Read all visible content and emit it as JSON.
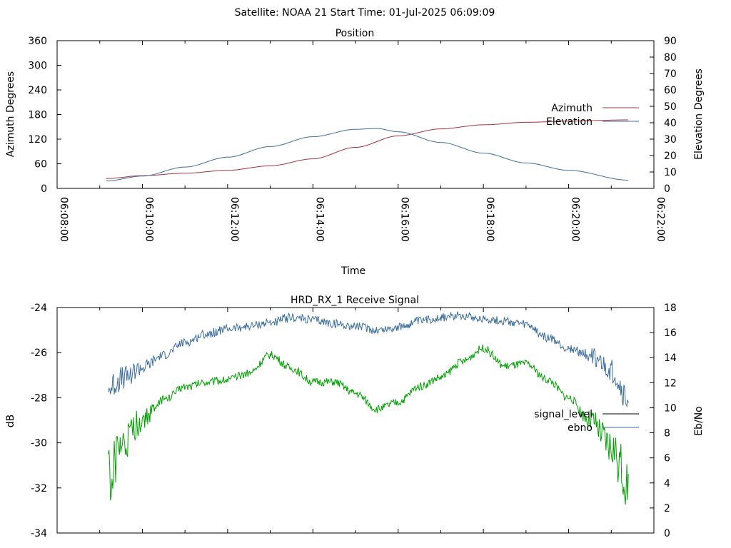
{
  "header": {
    "title": "Satellite: NOAA 21    Start Time: 01-Jul-2025 06:09:09"
  },
  "chart_data": [
    {
      "type": "line",
      "title": "Position",
      "xlabel": "Time",
      "ylabel": "Azimuth Degrees",
      "y2label": "Elevation Degrees",
      "x_ticks": [
        "06:08:00",
        "06:10:00",
        "06:12:00",
        "06:14:00",
        "06:16:00",
        "06:18:00",
        "06:20:00",
        "06:22:00"
      ],
      "xlim_minutes": [
        0,
        14
      ],
      "ylim": [
        0,
        360
      ],
      "y_ticks": [
        0,
        60,
        120,
        180,
        240,
        300,
        360
      ],
      "y2lim": [
        0,
        90
      ],
      "y2_ticks": [
        0,
        10,
        20,
        30,
        40,
        50,
        60,
        70,
        80,
        90
      ],
      "legend_position": "right",
      "series": [
        {
          "name": "Azimuth",
          "axis": "y",
          "color": "#a33340",
          "x_minutes": [
            1.15,
            2,
            3,
            4,
            5,
            6,
            7,
            8,
            9,
            10,
            11,
            12,
            13.4
          ],
          "values": [
            24,
            31,
            37,
            44,
            55,
            72,
            100,
            128,
            145,
            155,
            161,
            164,
            167
          ]
        },
        {
          "name": "Elevation",
          "axis": "y2",
          "color": "#3c6e9b",
          "x_minutes": [
            1.15,
            2,
            3,
            4,
            5,
            6,
            7,
            7.5,
            8,
            9,
            10,
            11,
            12,
            13.4
          ],
          "values": [
            4.5,
            7.5,
            13,
            19,
            25.5,
            31.5,
            36,
            36.5,
            34.5,
            28,
            21.5,
            15.5,
            11,
            5
          ]
        }
      ]
    },
    {
      "type": "line",
      "title": "HRD_RX_1 Receive Signal",
      "ylabel": "dB",
      "y2label": "Eb/No",
      "ylim": [
        -34,
        -24
      ],
      "y_ticks": [
        -34,
        -32,
        -30,
        -28,
        -26,
        -24
      ],
      "y2lim": [
        0,
        18
      ],
      "y2_ticks": [
        0,
        2,
        4,
        6,
        8,
        10,
        12,
        14,
        16,
        18
      ],
      "xlim_minutes": [
        0,
        14
      ],
      "legend_position": "right",
      "series": [
        {
          "name": "signal_level",
          "axis": "y",
          "color": "#000000",
          "x_minutes": [],
          "values": []
        },
        {
          "name": "ebno",
          "axis": "y2",
          "color": "#3c6e9b",
          "x_minutes": [
            1.2,
            1.5,
            2,
            2.5,
            3,
            3.5,
            4,
            4.5,
            5,
            5.5,
            6,
            6.5,
            7,
            7.5,
            8,
            8.5,
            9,
            9.5,
            10,
            10.5,
            11,
            11.5,
            12,
            12.5,
            13,
            13.4
          ],
          "values": [
            11.5,
            12.3,
            13.2,
            14.2,
            15.2,
            15.9,
            16.3,
            16.5,
            16.8,
            17.2,
            17.0,
            16.7,
            16.5,
            16.2,
            16.4,
            16.9,
            17.2,
            17.4,
            17.1,
            16.9,
            16.6,
            15.6,
            14.7,
            14.2,
            12.9,
            10.5
          ]
        },
        {
          "name": "",
          "axis": "y",
          "color": "#00a000",
          "x_minutes": [
            1.2,
            1.5,
            2,
            2.5,
            3,
            3.5,
            4,
            4.5,
            5,
            5.5,
            6,
            6.5,
            7,
            7.5,
            8,
            8.5,
            9,
            9.5,
            10,
            10.5,
            11,
            11.5,
            12,
            12.5,
            13,
            13.4
          ],
          "values": [
            -31.5,
            -30.3,
            -29.0,
            -28.1,
            -27.5,
            -27.3,
            -27.2,
            -26.9,
            -26.1,
            -26.7,
            -27.3,
            -27.3,
            -27.8,
            -28.5,
            -28.2,
            -27.5,
            -27.1,
            -26.4,
            -25.8,
            -26.6,
            -26.5,
            -27.2,
            -28.0,
            -29.0,
            -30.2,
            -31.8
          ]
        }
      ]
    }
  ]
}
